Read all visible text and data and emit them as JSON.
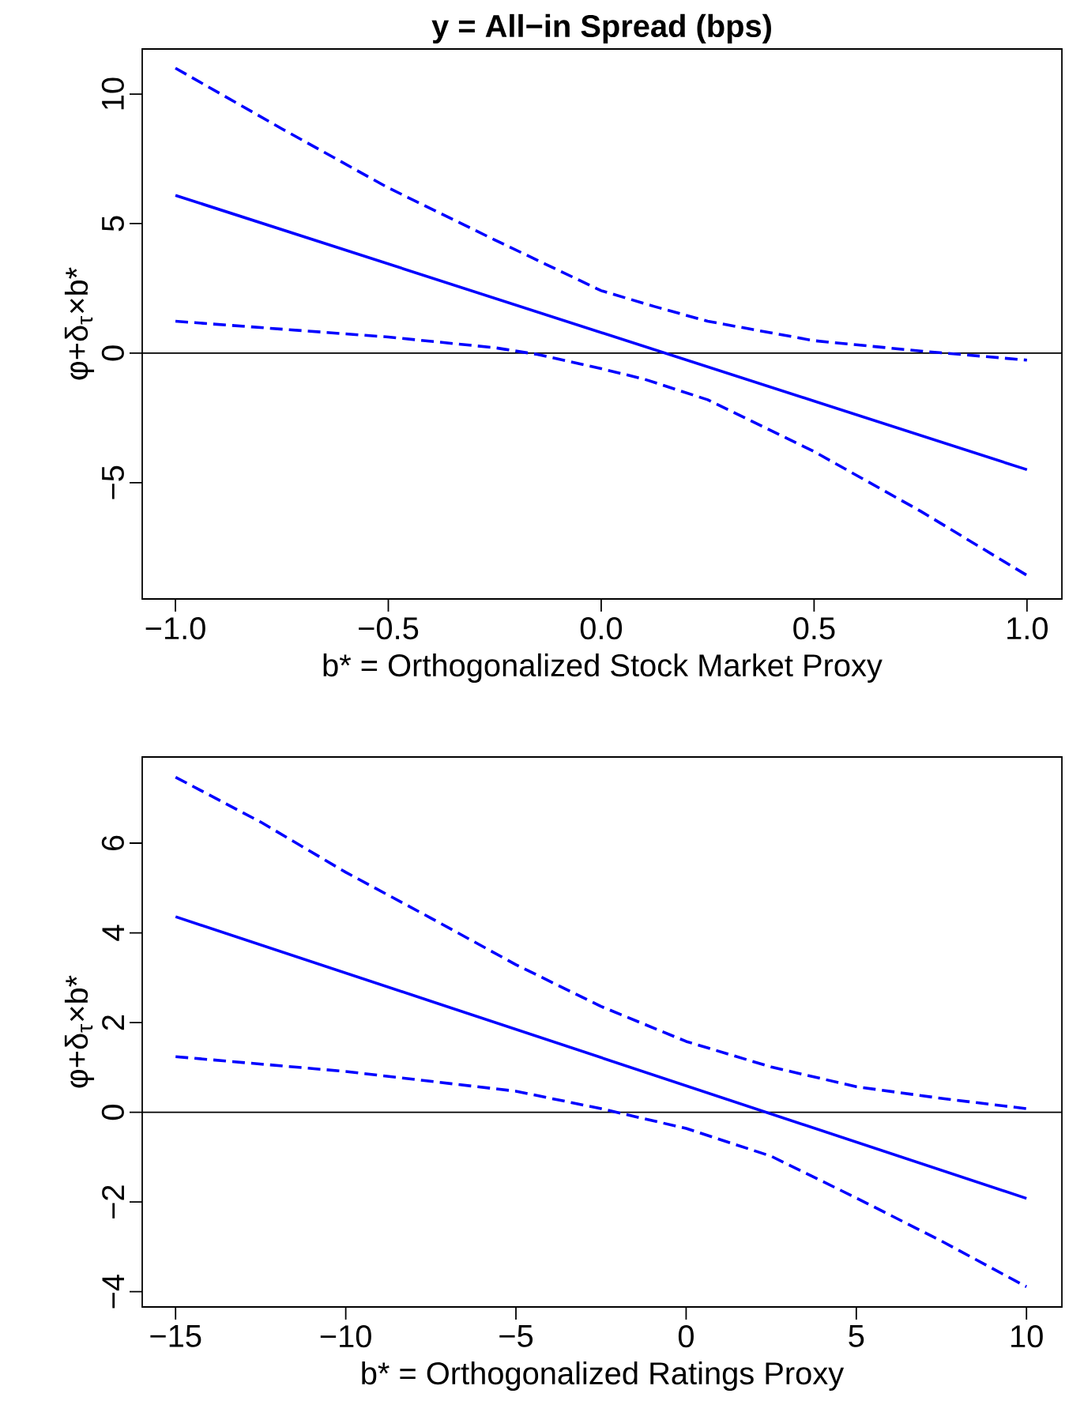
{
  "chart_data": [
    {
      "type": "line",
      "title": "y = All−in Spread (bps)",
      "xlabel": "b* = Orthogonalized Stock Market Proxy",
      "ylabel": "φ+δ$_{τ}$×b*",
      "xlim": [
        -1.078,
        1.082
      ],
      "ylim": [
        -9.49,
        11.74
      ],
      "xticks": [
        {
          "value": -1.0,
          "label": "−1.0"
        },
        {
          "value": -0.5,
          "label": "−0.5"
        },
        {
          "value": 0.0,
          "label": "0.0"
        },
        {
          "value": 0.5,
          "label": "0.5"
        },
        {
          "value": 1.0,
          "label": "1.0"
        }
      ],
      "yticks": [
        {
          "value": -5,
          "label": "−5"
        },
        0,
        5,
        10
      ],
      "grid": false,
      "marker": "none",
      "ref_lines": [
        {
          "axis": "y",
          "value": 0,
          "color": "#000000",
          "line_style": "solid"
        }
      ],
      "series": [
        {
          "color": "#0000ff",
          "line_style": "solid",
          "x": [
            -1,
            1
          ],
          "values": [
            6.09,
            -4.5
          ]
        },
        {
          "color": "#0000ff",
          "line_style": "dashed",
          "x": [
            -1,
            -0.75,
            -0.5,
            -0.25,
            0,
            0.125,
            0.25,
            0.5,
            0.75,
            1
          ],
          "values": [
            11.0,
            8.66,
            6.38,
            4.37,
            2.41,
            1.8,
            1.23,
            0.48,
            0.08,
            -0.27
          ]
        },
        {
          "color": "#0000ff",
          "line_style": "dashed",
          "x": [
            -1,
            -0.5,
            -0.25,
            -0.15,
            0,
            0.1,
            0.25,
            0.5,
            0.75,
            1
          ],
          "values": [
            1.23,
            0.62,
            0.21,
            -0.05,
            -0.6,
            -1.0,
            -1.8,
            -3.8,
            -6.1,
            -8.58
          ]
        }
      ]
    },
    {
      "type": "line",
      "xlabel": "b* = Orthogonalized Ratings Proxy",
      "ylabel": "φ+δ$_{τ}$×b*",
      "xlim": [
        -15.98,
        11.04
      ],
      "ylim": [
        -4.34,
        7.92
      ],
      "xticks": [
        {
          "value": -15,
          "label": "−15"
        },
        {
          "value": -10,
          "label": "−10"
        },
        {
          "value": -5,
          "label": "−5"
        },
        0,
        5,
        10
      ],
      "yticks": [
        {
          "value": -4,
          "label": "−4"
        },
        {
          "value": -2,
          "label": "−2"
        },
        0,
        2,
        4,
        6
      ],
      "grid": false,
      "marker": "none",
      "ref_lines": [
        {
          "axis": "y",
          "value": 0,
          "color": "#000000",
          "line_style": "solid"
        }
      ],
      "series": [
        {
          "color": "#0000ff",
          "line_style": "solid",
          "x": [
            -15,
            10
          ],
          "values": [
            4.36,
            -1.92
          ]
        },
        {
          "color": "#0000ff",
          "line_style": "dashed",
          "x": [
            -15,
            -12.5,
            -10,
            -7.5,
            -5,
            -2.5,
            0,
            2.5,
            5,
            7.5,
            10
          ],
          "values": [
            7.47,
            6.47,
            5.35,
            4.33,
            3.29,
            2.36,
            1.58,
            1.01,
            0.57,
            0.31,
            0.08
          ]
        },
        {
          "color": "#0000ff",
          "line_style": "dashed",
          "x": [
            -15,
            -10,
            -5,
            -2.5,
            0,
            2.5,
            5,
            7.5,
            10
          ],
          "values": [
            1.24,
            0.91,
            0.47,
            0.08,
            -0.36,
            -0.98,
            -1.91,
            -2.87,
            -3.89
          ]
        }
      ]
    }
  ]
}
